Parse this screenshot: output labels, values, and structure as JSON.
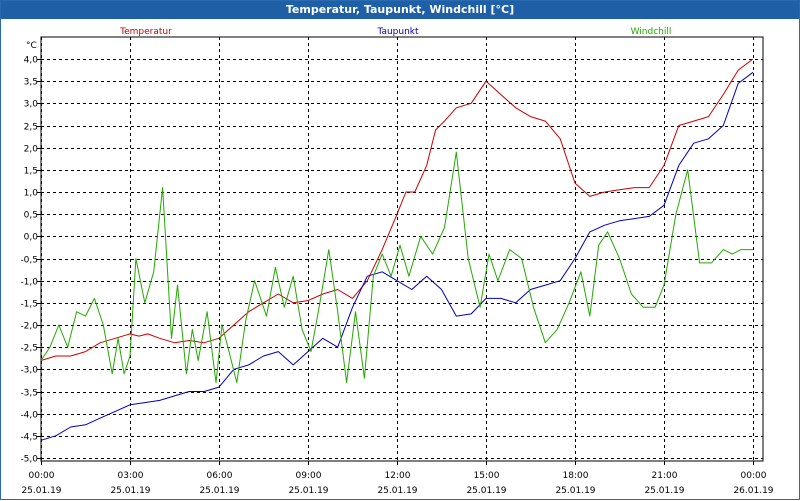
{
  "window": {
    "title": "Temperatur, Taupunkt, Windchill [°C]"
  },
  "chart_data": {
    "type": "line",
    "title": "Temperatur, Taupunkt, Windchill [°C]",
    "ylabel": "°C",
    "xlabel": "",
    "ylim": [
      -5.0,
      4.0
    ],
    "xlim": [
      0,
      24
    ],
    "yticks": [
      4.0,
      3.5,
      3.0,
      2.5,
      2.0,
      1.5,
      1.0,
      0.5,
      0.0,
      -0.5,
      -1.0,
      -1.5,
      -2.0,
      -2.5,
      -3.0,
      -3.5,
      -4.0,
      -4.5,
      -5.0
    ],
    "ytick_labels": [
      "4,0",
      "3,5",
      "3,0",
      "2,5",
      "2,0",
      "1,5",
      "1,0",
      "0,5",
      "0,0",
      "-0,5",
      "-1,0",
      "-1,5",
      "-2,0",
      "-2,5",
      "-3,0",
      "-3,5",
      "-4,0",
      "-4,5",
      "-5,0"
    ],
    "xticks": [
      {
        "time": "00:00",
        "date": "25.01.19",
        "value": 0
      },
      {
        "time": "03:00",
        "date": "25.01.19",
        "value": 3
      },
      {
        "time": "06:00",
        "date": "25.01.19",
        "value": 6
      },
      {
        "time": "09:00",
        "date": "25.01.19",
        "value": 9
      },
      {
        "time": "12:00",
        "date": "25.01.19",
        "value": 12
      },
      {
        "time": "15:00",
        "date": "25.01.19",
        "value": 15
      },
      {
        "time": "18:00",
        "date": "25.01.19",
        "value": 18
      },
      {
        "time": "21:00",
        "date": "25.01.19",
        "value": 21
      },
      {
        "time": "00:00",
        "date": "26.01.19",
        "value": 24
      }
    ],
    "grid": true,
    "series": [
      {
        "name": "Temperatur",
        "color": "#cc0000",
        "x": [
          0,
          0.5,
          1,
          1.5,
          2,
          2.5,
          3,
          3.3,
          3.6,
          4,
          4.5,
          5,
          5.5,
          6,
          6.5,
          7,
          7.5,
          8,
          8.5,
          9,
          9.5,
          10,
          10.5,
          11,
          11.5,
          12,
          12.3,
          12.6,
          13,
          13.3,
          13.6,
          14,
          14.5,
          15,
          15.5,
          16,
          16.5,
          17,
          17.5,
          18,
          18.5,
          19,
          19.5,
          20,
          20.5,
          21,
          21.5,
          22,
          22.5,
          23,
          23.5,
          24
        ],
        "y": [
          -2.8,
          -2.7,
          -2.7,
          -2.6,
          -2.4,
          -2.3,
          -2.2,
          -2.25,
          -2.2,
          -2.3,
          -2.4,
          -2.35,
          -2.4,
          -2.3,
          -2.0,
          -1.7,
          -1.5,
          -1.3,
          -1.5,
          -1.45,
          -1.3,
          -1.2,
          -1.4,
          -1.0,
          -0.3,
          0.5,
          1.0,
          1.0,
          1.6,
          2.4,
          2.6,
          2.9,
          3.0,
          3.5,
          3.2,
          2.9,
          2.7,
          2.6,
          2.2,
          1.2,
          0.9,
          1.0,
          1.05,
          1.1,
          1.1,
          1.6,
          2.5,
          2.6,
          2.7,
          3.2,
          3.75,
          4.0
        ]
      },
      {
        "name": "Taupunkt",
        "color": "#0000bb",
        "x": [
          0,
          0.5,
          1,
          1.5,
          2,
          2.5,
          3,
          3.5,
          4,
          4.5,
          5,
          5.5,
          6,
          6.5,
          7,
          7.5,
          8,
          8.5,
          9,
          9.5,
          10,
          10.5,
          11,
          11.5,
          12,
          12.5,
          13,
          13.5,
          14,
          14.5,
          15,
          15.5,
          16,
          16.5,
          17,
          17.5,
          18,
          18.5,
          19,
          19.5,
          20,
          20.5,
          21,
          21.5,
          22,
          22.5,
          23,
          23.5,
          24
        ],
        "y": [
          -4.6,
          -4.5,
          -4.3,
          -4.25,
          -4.1,
          -3.95,
          -3.8,
          -3.75,
          -3.7,
          -3.6,
          -3.5,
          -3.5,
          -3.4,
          -3.0,
          -2.9,
          -2.7,
          -2.6,
          -2.9,
          -2.6,
          -2.3,
          -2.5,
          -1.6,
          -0.9,
          -0.8,
          -1.0,
          -1.2,
          -0.9,
          -1.2,
          -1.8,
          -1.75,
          -1.4,
          -1.4,
          -1.5,
          -1.2,
          -1.1,
          -1.0,
          -0.5,
          0.1,
          0.25,
          0.35,
          0.4,
          0.45,
          0.7,
          1.6,
          2.1,
          2.2,
          2.5,
          3.45,
          3.7
        ]
      },
      {
        "name": "Windchill",
        "color": "#22aa00",
        "x": [
          0,
          0.3,
          0.6,
          0.9,
          1.2,
          1.5,
          1.8,
          2.1,
          2.4,
          2.6,
          2.8,
          3.0,
          3.2,
          3.5,
          3.8,
          4.1,
          4.4,
          4.6,
          4.9,
          5.1,
          5.3,
          5.6,
          5.9,
          6.1,
          6.3,
          6.6,
          6.9,
          7.2,
          7.6,
          7.9,
          8.2,
          8.5,
          8.8,
          9.1,
          9.4,
          9.7,
          10.0,
          10.3,
          10.6,
          10.9,
          11.2,
          11.5,
          11.8,
          12.1,
          12.4,
          12.8,
          13.2,
          13.6,
          14.0,
          14.4,
          14.8,
          15.1,
          15.4,
          15.8,
          16.2,
          16.6,
          17.0,
          17.4,
          17.8,
          18.2,
          18.5,
          18.8,
          19.1,
          19.5,
          19.9,
          20.3,
          20.7,
          21.0,
          21.4,
          21.8,
          22.2,
          22.6,
          23.0,
          23.3,
          23.6,
          24.0
        ],
        "y": [
          -2.8,
          -2.5,
          -2.0,
          -2.5,
          -1.7,
          -1.8,
          -1.4,
          -2.0,
          -3.1,
          -2.3,
          -3.1,
          -2.7,
          -0.5,
          -1.5,
          -0.8,
          1.1,
          -2.3,
          -1.1,
          -3.1,
          -2.1,
          -2.8,
          -1.7,
          -3.3,
          -2.0,
          -2.5,
          -3.3,
          -1.9,
          -1.0,
          -1.8,
          -0.7,
          -1.6,
          -0.9,
          -2.1,
          -2.6,
          -1.5,
          -0.3,
          -1.7,
          -3.3,
          -1.7,
          -3.2,
          -0.9,
          -0.4,
          -0.9,
          -0.2,
          -0.9,
          0.0,
          -0.4,
          0.2,
          1.9,
          -0.5,
          -1.6,
          -0.4,
          -1.0,
          -0.3,
          -0.5,
          -1.6,
          -2.4,
          -2.1,
          -1.5,
          -0.8,
          -1.8,
          -0.2,
          0.1,
          -0.5,
          -1.3,
          -1.6,
          -1.6,
          -1.1,
          0.5,
          1.5,
          -0.6,
          -0.6,
          -0.3,
          -0.4,
          -0.3,
          -0.3
        ]
      }
    ]
  }
}
